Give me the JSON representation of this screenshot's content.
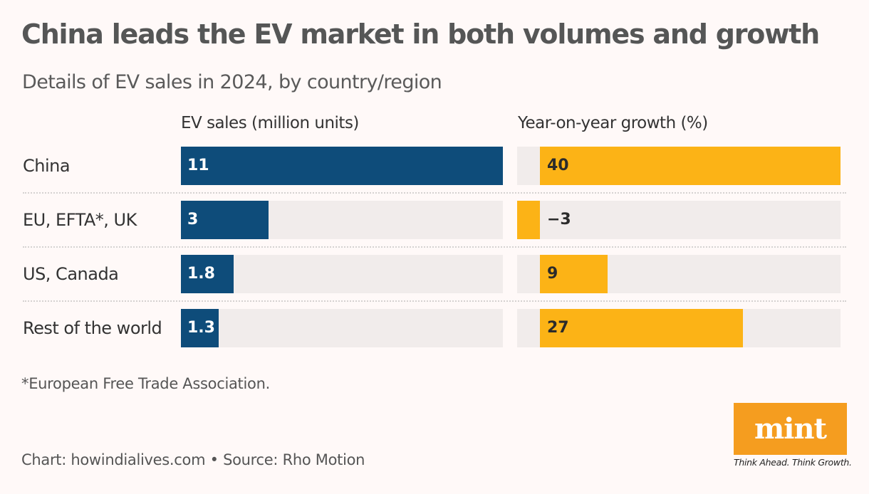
{
  "title": "China leads the EV market in both volumes and growth",
  "subtitle": "Details of EV sales in 2024, by country/region",
  "footnote": "*European Free Trade Association.",
  "source": "Chart: howindialives.com • Source: Rho Motion",
  "logo": {
    "text": "mint",
    "tagline": "Think Ahead. Think Growth.",
    "color": "#f59d1f"
  },
  "colors": {
    "sales_bar": "#0e4c7a",
    "growth_bar": "#fcb316",
    "track": "#f1eceb",
    "background": "#fff9f8"
  },
  "chart_data": {
    "type": "bar",
    "title": "China leads the EV market in both volumes and growth",
    "subtitle": "Details of EV sales in 2024, by country/region",
    "categories": [
      "China",
      "EU, EFTA*, UK",
      "US, Canada",
      "Rest of the world"
    ],
    "series": [
      {
        "name": "EV sales (million units)",
        "values": [
          11,
          3,
          1.8,
          1.3
        ],
        "labels": [
          "11",
          "3",
          "1.8",
          "1.3"
        ],
        "range": [
          0,
          11
        ]
      },
      {
        "name": "Year-on-year growth (%)",
        "values": [
          40,
          -3,
          9,
          27
        ],
        "labels": [
          "40",
          "−3",
          "9",
          "27"
        ],
        "range": [
          -3,
          40
        ]
      }
    ],
    "orientation": "horizontal",
    "grid": false,
    "legend": "none"
  }
}
